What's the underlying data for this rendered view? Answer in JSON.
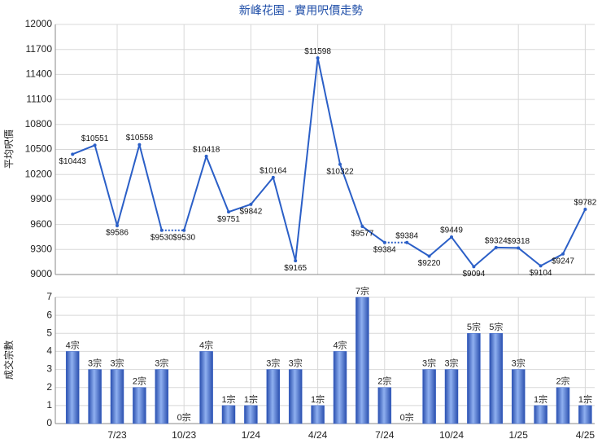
{
  "charts": [
    {
      "type": "line",
      "title": "新峰花園 - 實用呎價走勢",
      "ylabel": "平均呎價",
      "color": "#2b5fc7",
      "values": [
        10443,
        10551,
        9586,
        10558,
        9530,
        9530,
        10418,
        9751,
        9842,
        10164,
        9165,
        11598,
        10322,
        9577,
        9384,
        9384,
        9220,
        9449,
        9094,
        9324,
        9318,
        9104,
        9247,
        9782
      ],
      "value_labels": [
        "$10443",
        "$10551",
        "$9586",
        "$10558",
        "$9530",
        "$9530",
        "$10418",
        "$9751",
        "$9842",
        "$10164",
        "$9165",
        "$11598",
        "$10322",
        "$9577",
        "$9384",
        "$9384",
        "$9220",
        "$9449",
        "$9094",
        "$9324",
        "$9318",
        "$9104",
        "$9247",
        "$9782"
      ],
      "ylim": [
        9000,
        12000
      ],
      "yticks": [
        9000,
        9300,
        9600,
        9900,
        10200,
        10500,
        10800,
        11100,
        11400,
        11700,
        12000
      ],
      "grid": true
    },
    {
      "type": "bar",
      "ylabel": "成交宗數",
      "color": "#3a64c9",
      "categories": [
        null,
        null,
        "7/23",
        null,
        null,
        "10/23",
        null,
        null,
        "1/24",
        null,
        null,
        "4/24",
        null,
        null,
        "7/24",
        null,
        null,
        "10/24",
        null,
        null,
        "1/25",
        null,
        null,
        "4/25"
      ],
      "values": [
        4,
        3,
        3,
        2,
        3,
        0,
        4,
        1,
        1,
        3,
        3,
        1,
        4,
        7,
        2,
        0,
        3,
        3,
        5,
        5,
        3,
        1,
        2,
        1
      ],
      "value_labels": [
        "4宗",
        "3宗",
        "3宗",
        "2宗",
        "3宗",
        "0宗",
        "4宗",
        "1宗",
        "1宗",
        "3宗",
        "3宗",
        "1宗",
        "4宗",
        "7宗",
        "2宗",
        "0宗",
        "3宗",
        "3宗",
        "5宗",
        "5宗",
        "3宗",
        "1宗",
        "2宗",
        "1宗"
      ],
      "ylim": [
        0,
        7
      ],
      "yticks": [
        0,
        1,
        2,
        3,
        4,
        5,
        6,
        7
      ],
      "grid": true
    }
  ]
}
